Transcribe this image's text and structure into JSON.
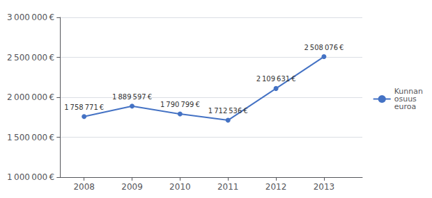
{
  "chart_data": {
    "type": "line",
    "x": [
      2008,
      2009,
      2010,
      2011,
      2012,
      2013
    ],
    "series": [
      {
        "name": "Kunnan\nosuus\neuroa",
        "color": "#4472C4",
        "marker": "circle",
        "values": [
          1758771,
          1889597,
          1790799,
          1712536,
          2109631,
          2508076
        ],
        "value_labels": [
          "1 758 771 €",
          "1 889 597 €",
          "1 790 799 €",
          "1 712 536 €",
          "2 109 631 €",
          "2 508 076 €"
        ]
      }
    ],
    "data_labels": true,
    "xlim": [
      2007.5,
      2013.8
    ],
    "xticks": [
      2008,
      2009,
      2010,
      2011,
      2012,
      2013
    ],
    "ylim": [
      1000000,
      3000000
    ],
    "yticks": [
      {
        "value": 1000000,
        "label": "1 000 000 €"
      },
      {
        "value": 1500000,
        "label": "1 500 000 €"
      },
      {
        "value": 2000000,
        "label": "2 000 000 €"
      },
      {
        "value": 2500000,
        "label": "2 500 000 €"
      },
      {
        "value": 3000000,
        "label": "3 000 000 €"
      }
    ],
    "grid": true,
    "legend": "right"
  }
}
